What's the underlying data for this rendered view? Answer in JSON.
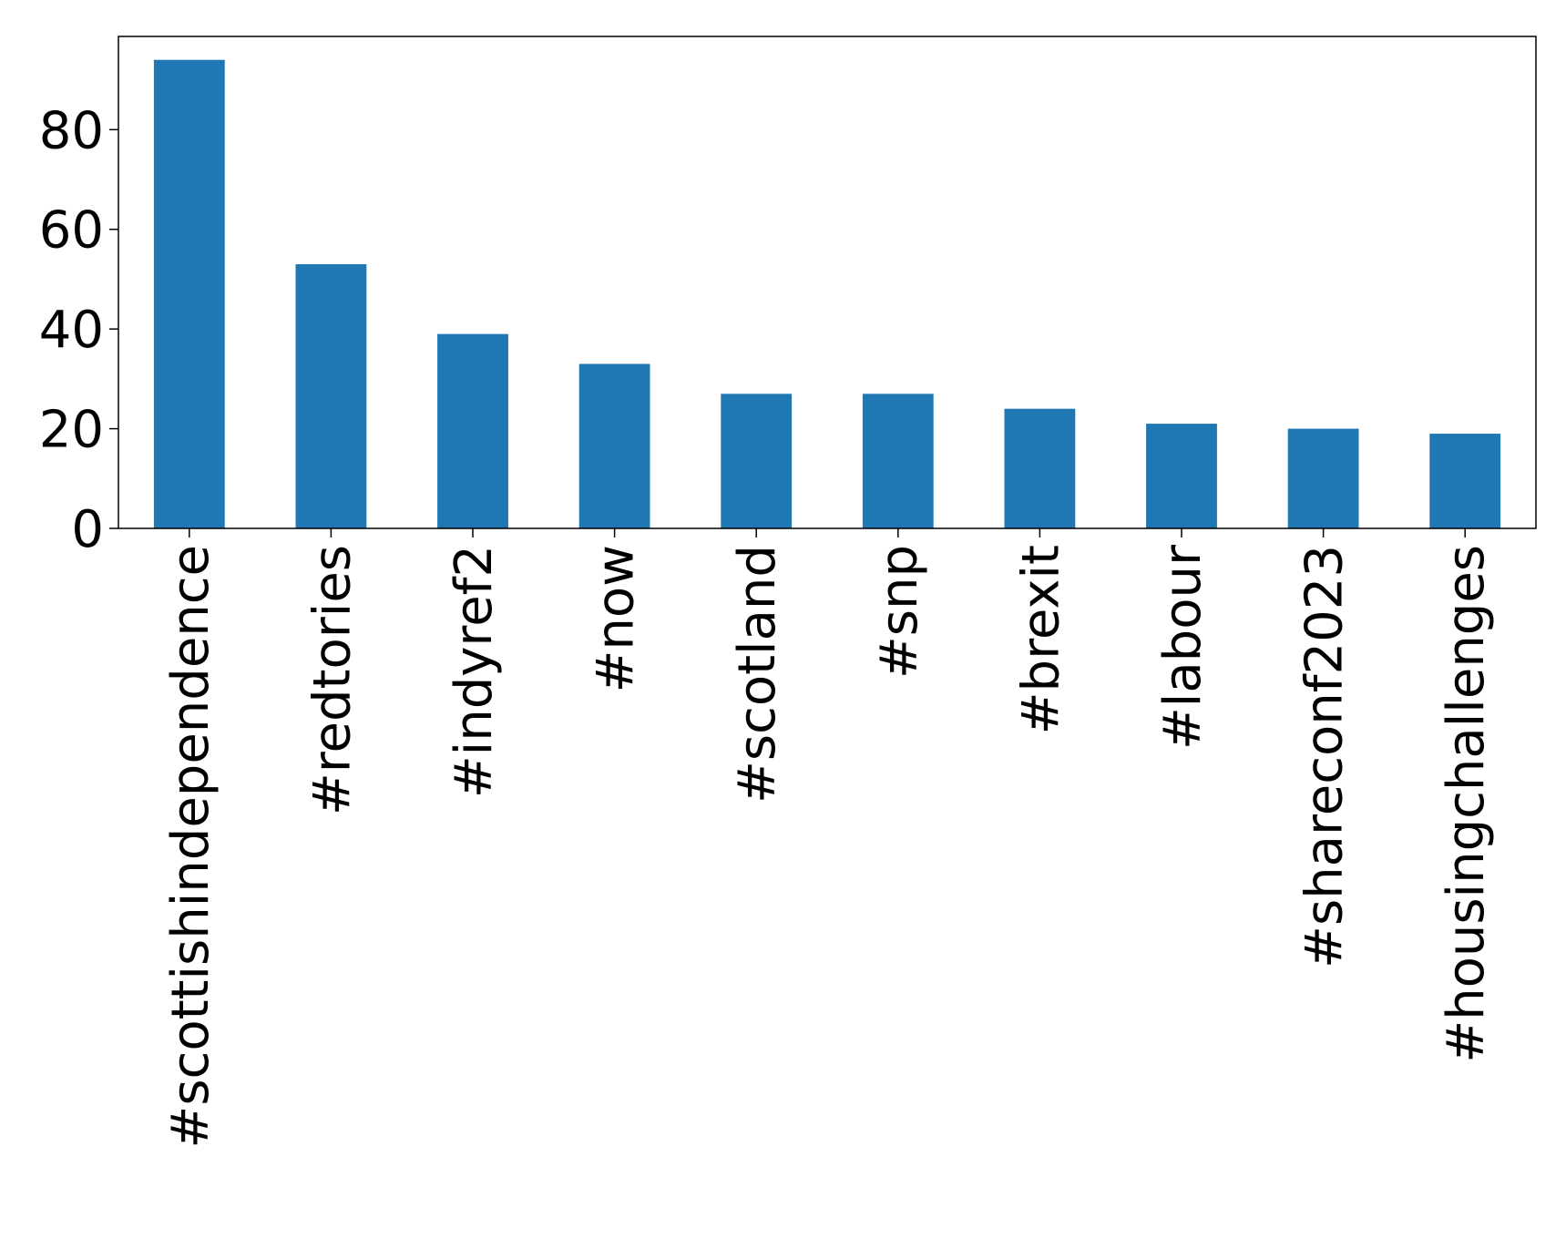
{
  "chart_data": {
    "type": "bar",
    "title": "",
    "xlabel": "",
    "ylabel": "",
    "categories": [
      "#scottishindependence",
      "#redtories",
      "#indyref2",
      "#now",
      "#scotland",
      "#snp",
      "#brexit",
      "#labour",
      "#shareconf2023",
      "#housingchallenges"
    ],
    "values": [
      94,
      53,
      39,
      33,
      27,
      27,
      24,
      21,
      20,
      19
    ],
    "ylim": [
      0,
      98.7
    ],
    "yticks": [
      0,
      20,
      40,
      60,
      80
    ],
    "grid": false,
    "legend": "none",
    "colors": {
      "bar": "#1f77b4",
      "axis": "#000000",
      "background": "#ffffff"
    }
  }
}
